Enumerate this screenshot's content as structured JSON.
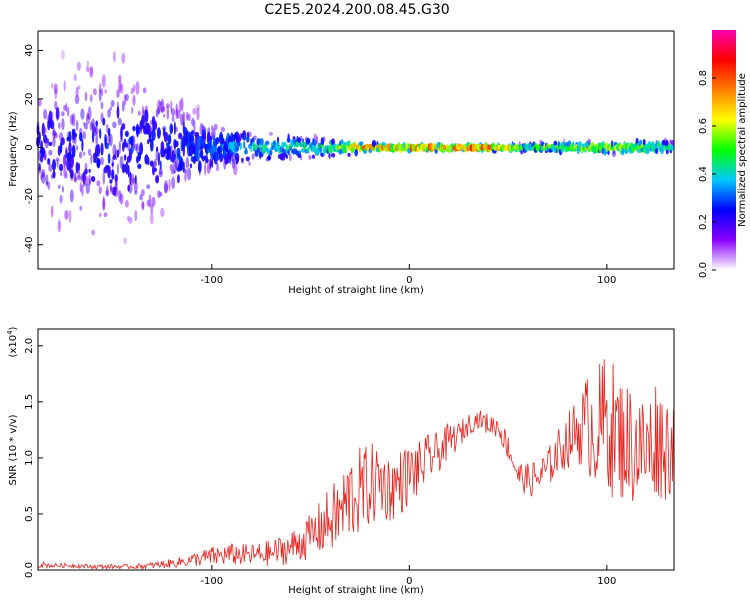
{
  "chart_data": [
    {
      "type": "heatmap",
      "title": "C2E5.2024.200.08.45.G30",
      "xlabel": "Height of straight line (km)",
      "ylabel": "Frequency (Hz)",
      "xlim": [
        -188,
        134
      ],
      "ylim": [
        -50,
        48
      ],
      "xticks": [
        -100,
        0,
        100
      ],
      "xtick_labels": [
        "-100",
        "0",
        "100"
      ],
      "yticks": [
        -40,
        -20,
        0,
        20,
        40
      ],
      "ytick_labels": [
        "-40",
        "-20",
        "0",
        "20",
        "40"
      ],
      "ridge_frequency_hz": 0,
      "colorbar": {
        "label": "Normalized spectral amplitude",
        "range": [
          0.0,
          1.0
        ],
        "ticks": [
          0.0,
          0.2,
          0.4,
          0.6,
          0.8
        ],
        "tick_labels": [
          "0.0",
          "0.2",
          "0.4",
          "0.6",
          "0.8"
        ],
        "colors": [
          "#ffffff",
          "#8a00ff",
          "#0000ff",
          "#00c8ff",
          "#00ff00",
          "#ffff00",
          "#ff8000",
          "#ff0000",
          "#ff00b0"
        ]
      },
      "amplitude_profile": {
        "x": [
          -188,
          -150,
          -120,
          -100,
          -80,
          -60,
          -40,
          -20,
          0,
          20,
          40,
          60,
          80,
          100,
          120,
          134
        ],
        "peak": [
          0.25,
          0.28,
          0.3,
          0.35,
          0.45,
          0.5,
          0.55,
          0.9,
          0.92,
          0.93,
          0.9,
          0.55,
          0.75,
          0.7,
          0.6,
          0.55
        ],
        "spread_hz": [
          40,
          48,
          30,
          14,
          8,
          6,
          5,
          2,
          1.5,
          1.5,
          1.5,
          2,
          2.5,
          3,
          3.5,
          3
        ]
      }
    },
    {
      "type": "line",
      "xlabel": "Height of straight line (km)",
      "ylabel": "SNR (10 * v/v)",
      "yscale_label": "(x10",
      "yscale_exponent": "4",
      "yscale_suffix": ")",
      "xlim": [
        -188,
        134
      ],
      "ylim": [
        0.0,
        2.15
      ],
      "xticks": [
        -100,
        0,
        100
      ],
      "xtick_labels": [
        "-100",
        "0",
        "100"
      ],
      "yticks": [
        0.0,
        0.5,
        1.0,
        1.5,
        2.0
      ],
      "ytick_labels": [
        "0.0",
        "0.5",
        "1.0",
        "1.5",
        "2.0"
      ],
      "series": [
        {
          "name": "SNR",
          "color": "#e8231d",
          "x": [
            -188,
            -180,
            -170,
            -160,
            -150,
            -140,
            -130,
            -120,
            -110,
            -100,
            -90,
            -80,
            -70,
            -60,
            -50,
            -40,
            -35,
            -30,
            -25,
            -20,
            -15,
            -10,
            -5,
            0,
            5,
            10,
            15,
            20,
            25,
            30,
            35,
            40,
            45,
            50,
            55,
            60,
            65,
            70,
            75,
            80,
            85,
            90,
            95,
            100,
            105,
            110,
            115,
            120,
            125,
            130,
            134
          ],
          "values": [
            0.05,
            0.04,
            0.04,
            0.03,
            0.03,
            0.03,
            0.04,
            0.06,
            0.09,
            0.12,
            0.14,
            0.13,
            0.15,
            0.2,
            0.3,
            0.45,
            0.5,
            0.65,
            0.7,
            0.75,
            0.8,
            0.72,
            0.78,
            0.85,
            0.9,
            1.0,
            1.05,
            1.15,
            1.2,
            1.3,
            1.35,
            1.3,
            1.28,
            1.1,
            0.85,
            0.8,
            0.82,
            0.9,
            1.05,
            1.15,
            1.25,
            1.3,
            1.25,
            1.35,
            1.2,
            1.15,
            1.1,
            1.05,
            1.2,
            1.1,
            1.15
          ],
          "noise": [
            0.03,
            0.02,
            0.02,
            0.02,
            0.02,
            0.02,
            0.03,
            0.04,
            0.06,
            0.09,
            0.1,
            0.1,
            0.12,
            0.15,
            0.2,
            0.3,
            0.35,
            0.4,
            0.4,
            0.38,
            0.36,
            0.3,
            0.3,
            0.28,
            0.25,
            0.22,
            0.18,
            0.16,
            0.12,
            0.1,
            0.08,
            0.1,
            0.1,
            0.12,
            0.12,
            0.15,
            0.18,
            0.18,
            0.2,
            0.25,
            0.3,
            0.45,
            0.55,
            0.65,
            0.6,
            0.55,
            0.55,
            0.5,
            0.55,
            0.5,
            0.45
          ]
        }
      ]
    }
  ]
}
